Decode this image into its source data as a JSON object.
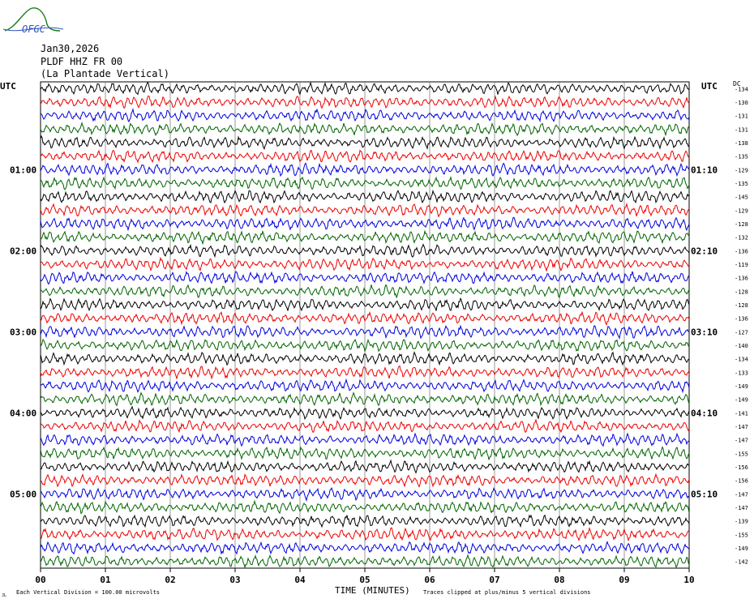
{
  "logo": {
    "text": "OFGC"
  },
  "header": {
    "date": "Jan30,2026",
    "station": "PLDF HHZ FR 00",
    "location": "(La Plantade Vertical)"
  },
  "chart_data": {
    "type": "line",
    "title": "",
    "left_label": "UTC",
    "right_label": "UTC",
    "dc_label": "DC",
    "xlabel": "TIME (MINUTES)",
    "x_ticks": [
      "00",
      "01",
      "02",
      "03",
      "04",
      "05",
      "06",
      "07",
      "08",
      "09",
      "10"
    ],
    "xlim": [
      0,
      10
    ],
    "left_hour_labels": [
      {
        "row": 6,
        "text": "01:00"
      },
      {
        "row": 12,
        "text": "02:00"
      },
      {
        "row": 18,
        "text": "03:00"
      },
      {
        "row": 24,
        "text": "04:00"
      },
      {
        "row": 30,
        "text": "05:00"
      }
    ],
    "right_hour_labels": [
      {
        "row": 6,
        "text": "01:10"
      },
      {
        "row": 12,
        "text": "02:10"
      },
      {
        "row": 18,
        "text": "03:10"
      },
      {
        "row": 24,
        "text": "04:10"
      },
      {
        "row": 30,
        "text": "05:10"
      }
    ],
    "dc_offsets": [
      -134,
      -130,
      -131,
      -131,
      -138,
      -135,
      -129,
      -135,
      -145,
      -129,
      -128,
      -132,
      -136,
      -119,
      -136,
      -128,
      -128,
      -136,
      -127,
      -140,
      -134,
      -133,
      -149,
      -149,
      -141,
      -147,
      -147,
      -155,
      -156,
      -156,
      -147,
      -147,
      -139,
      -155,
      -149,
      -142
    ],
    "trace_colors": [
      "#000000",
      "#ee0000",
      "#0000dd",
      "#006400"
    ],
    "footer_left": "Each Vertical Division =  100.00 microvolts",
    "footer_right": "Traces clipped at plus/minus 5 vertical divisions",
    "corner_mark": "JL"
  }
}
